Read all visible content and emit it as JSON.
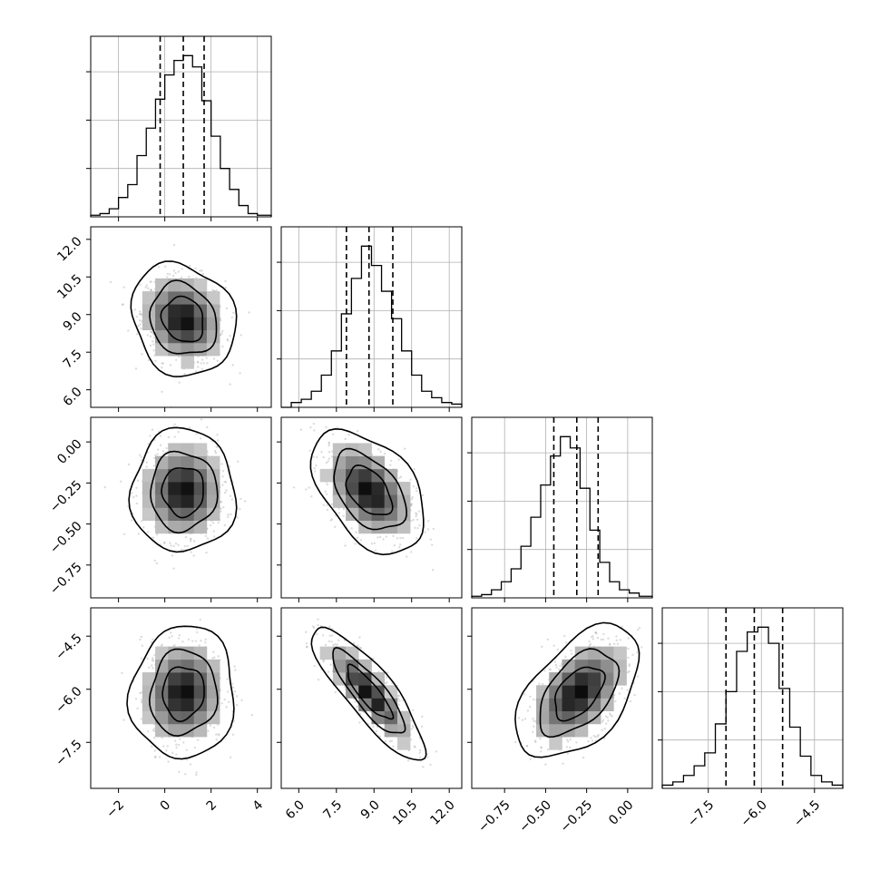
{
  "chart_data": {
    "type": "corner",
    "grid": true,
    "colors": {
      "line": "#000000",
      "grid": "#b0b0b0",
      "scatter": "#9a9a9a"
    },
    "parameters": [
      {
        "range": [
          -3.2,
          4.6
        ],
        "ticks": [
          -2,
          0,
          2,
          4
        ],
        "tick_labels": [
          "−2",
          "0",
          "2",
          "4"
        ],
        "quantiles": [
          -0.2,
          0.8,
          1.7
        ],
        "mean": 0.8,
        "sd": 0.9,
        "histogram": {
          "bin_edges": [
            -3.2,
            -2.8,
            -2.4,
            -2.0,
            -1.6,
            -1.2,
            -0.8,
            -0.4,
            0.0,
            0.4,
            0.8,
            1.2,
            1.6,
            2.0,
            2.4,
            2.8,
            3.2,
            3.6,
            4.0,
            4.6
          ],
          "counts": [
            0.01,
            0.02,
            0.05,
            0.12,
            0.2,
            0.38,
            0.55,
            0.73,
            0.88,
            0.97,
            1.0,
            0.93,
            0.72,
            0.5,
            0.3,
            0.17,
            0.07,
            0.02,
            0.01
          ]
        }
      },
      {
        "range": [
          5.3,
          12.5
        ],
        "ticks": [
          6.0,
          7.5,
          9.0,
          10.5,
          12.0
        ],
        "tick_labels": [
          "6.0",
          "7.5",
          "9.0",
          "10.5",
          "12.0"
        ],
        "quantiles": [
          7.9,
          8.8,
          9.75
        ],
        "mean": 8.8,
        "sd": 0.9,
        "histogram": {
          "bin_edges": [
            5.3,
            5.7,
            6.1,
            6.5,
            6.9,
            7.3,
            7.7,
            8.1,
            8.5,
            8.9,
            9.3,
            9.7,
            10.1,
            10.5,
            10.9,
            11.3,
            11.7,
            12.1,
            12.5
          ],
          "counts": [
            0.0,
            0.03,
            0.05,
            0.1,
            0.2,
            0.35,
            0.58,
            0.8,
            1.0,
            0.88,
            0.72,
            0.55,
            0.35,
            0.2,
            0.1,
            0.06,
            0.03,
            0.02
          ]
        }
      },
      {
        "range": [
          -0.95,
          0.15
        ],
        "ticks": [
          -0.75,
          -0.5,
          -0.25,
          0.0
        ],
        "tick_labels": [
          "−0.75",
          "−0.50",
          "−0.25",
          "0.00"
        ],
        "quantiles": [
          -0.45,
          -0.31,
          -0.18
        ],
        "mean": -0.3,
        "sd": 0.15,
        "histogram": {
          "bin_edges": [
            -0.95,
            -0.89,
            -0.83,
            -0.77,
            -0.71,
            -0.65,
            -0.59,
            -0.53,
            -0.47,
            -0.41,
            -0.35,
            -0.29,
            -0.23,
            -0.17,
            -0.11,
            -0.05,
            0.01,
            0.07,
            0.15
          ],
          "counts": [
            0.01,
            0.02,
            0.05,
            0.1,
            0.18,
            0.32,
            0.5,
            0.7,
            0.88,
            1.0,
            0.93,
            0.68,
            0.42,
            0.22,
            0.1,
            0.05,
            0.03,
            0.01
          ]
        }
      },
      {
        "range": [
          -8.8,
          -3.7
        ],
        "ticks": [
          -7.5,
          -6.0,
          -4.5
        ],
        "tick_labels": [
          "−7.5",
          "−6.0",
          "−4.5"
        ],
        "quantiles": [
          -7.0,
          -6.2,
          -5.4
        ],
        "mean": -6.1,
        "sd": 0.75,
        "histogram": {
          "bin_edges": [
            -8.8,
            -8.5,
            -8.2,
            -7.9,
            -7.6,
            -7.3,
            -7.0,
            -6.7,
            -6.4,
            -6.1,
            -5.8,
            -5.5,
            -5.2,
            -4.9,
            -4.6,
            -4.3,
            -4.0,
            -3.7
          ],
          "counts": [
            0.02,
            0.04,
            0.08,
            0.14,
            0.22,
            0.4,
            0.6,
            0.85,
            0.97,
            1.0,
            0.9,
            0.62,
            0.38,
            0.2,
            0.08,
            0.04,
            0.02
          ]
        }
      }
    ],
    "correlations": {
      "1-0": -0.15,
      "2-0": 0.0,
      "2-1": -0.45,
      "3-0": 0.05,
      "3-1": -0.85,
      "3-2": 0.5
    },
    "contour_levels_sigma": [
      1.0,
      1.6,
      2.5
    ]
  }
}
